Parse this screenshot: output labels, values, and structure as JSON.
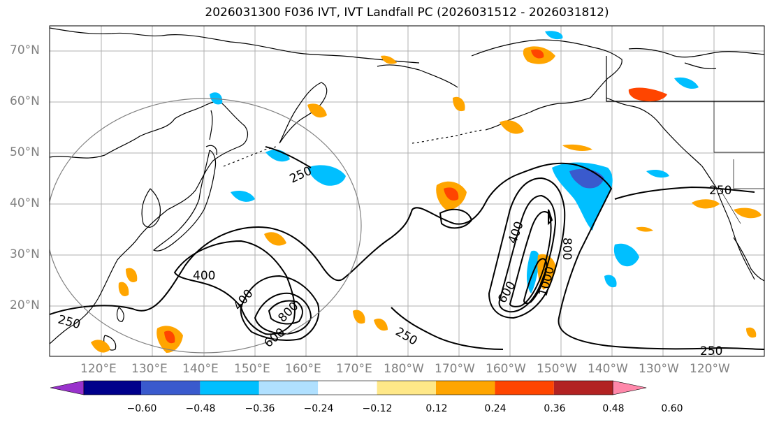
{
  "title": "2026031300 F036 IVT, IVT Landfall PC (2026031512 - 2026031812)",
  "lat_labels": [
    "70°N",
    "60°N",
    "50°N",
    "40°N",
    "30°N",
    "20°N"
  ],
  "lon_labels": [
    "120°E",
    "130°E",
    "140°E",
    "150°E",
    "160°E",
    "170°E",
    "180°W",
    "170°W",
    "160°W",
    "150°W",
    "140°W",
    "130°W",
    "120°W"
  ],
  "colorbar": {
    "colors": [
      "#9932CC",
      "#00008B",
      "#3A5ACD",
      "#00BFFF",
      "#B0E0FF",
      "#FFFFFF",
      "#FFE888",
      "#FFA500",
      "#FF4500",
      "#B22222",
      "#FF88AA"
    ],
    "ticks": [
      "−0.60",
      "−0.48",
      "−0.36",
      "−0.24",
      "−0.12",
      "0.12",
      "0.24",
      "0.36",
      "0.48",
      "0.60"
    ]
  },
  "contour_labels": [
    "250",
    "250",
    "250",
    "250",
    "250",
    "400",
    "400",
    "400",
    "600",
    "800",
    "600",
    "800",
    "1000"
  ]
}
